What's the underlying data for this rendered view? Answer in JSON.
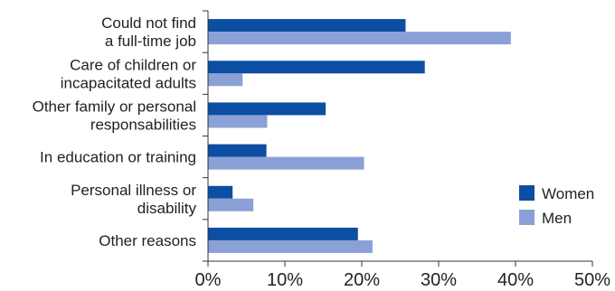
{
  "chart_data": {
    "type": "bar",
    "orientation": "horizontal",
    "categories": [
      [
        "Could not find",
        "a full-time job"
      ],
      [
        "Care of children or",
        "incapacitated adults"
      ],
      [
        "Other family or personal",
        "responsabilities"
      ],
      [
        "In education or training"
      ],
      [
        "Personal illness or",
        "disability"
      ],
      [
        "Other reasons"
      ]
    ],
    "series": [
      {
        "name": "Women",
        "color": "#0b4ea2",
        "values": [
          25.7,
          28.2,
          15.3,
          7.6,
          3.2,
          19.5
        ]
      },
      {
        "name": "Men",
        "color": "#8aa0d6",
        "values": [
          39.4,
          4.5,
          7.7,
          20.3,
          5.9,
          21.4
        ]
      }
    ],
    "xlim": [
      0,
      50
    ],
    "xticks": [
      0,
      10,
      20,
      30,
      40,
      50
    ],
    "xtick_labels": [
      "0%",
      "10%",
      "20%",
      "30%",
      "40%",
      "50%"
    ],
    "grid": false,
    "legend": "right"
  }
}
